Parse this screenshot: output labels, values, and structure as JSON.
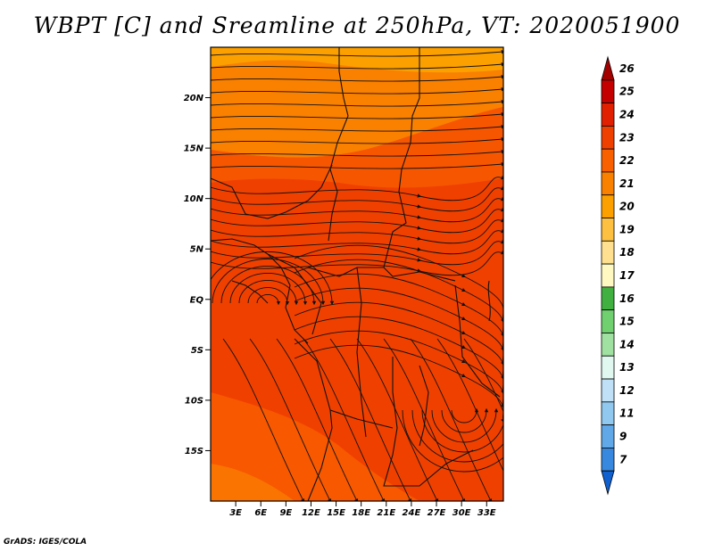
{
  "title": "WBPT [C] and Sreamline at 250hPa, VT: 2020051900",
  "credit": "GrADS: IGES/COLA",
  "chart_data": {
    "type": "heatmap",
    "variable": "WBPT [C]",
    "overlay": "streamlines at 250hPa",
    "valid_time": "2020051900",
    "y_ticks": [
      "20N",
      "15N",
      "10N",
      "5N",
      "EQ",
      "5S",
      "10S",
      "15S"
    ],
    "y_tick_values": [
      20,
      15,
      10,
      5,
      0,
      -5,
      -10,
      -15
    ],
    "x_ticks": [
      "3E",
      "6E",
      "9E",
      "12E",
      "15E",
      "18E",
      "21E",
      "24E",
      "27E",
      "30E",
      "33E"
    ],
    "x_tick_values": [
      3,
      6,
      9,
      12,
      15,
      18,
      21,
      24,
      27,
      30,
      33
    ],
    "lon_range": [
      0,
      35
    ],
    "lat_range": [
      -20,
      25
    ],
    "colorbar": {
      "labels": [
        "26",
        "25",
        "24",
        "23",
        "22",
        "21",
        "20",
        "19",
        "18",
        "17",
        "16",
        "15",
        "14",
        "13",
        "12",
        "11",
        "9",
        "7"
      ],
      "colors": [
        "#a50000",
        "#c40000",
        "#e02000",
        "#f04000",
        "#f86000",
        "#fa8000",
        "#fca000",
        "#fdc040",
        "#fee090",
        "#fff8c0",
        "#40b040",
        "#70d070",
        "#a0e0a0",
        "#e0f8f0",
        "#c0e0f8",
        "#90c8f0",
        "#60a8e8",
        "#3888e0",
        "#1060d0"
      ]
    },
    "field_colors": {
      "dominant": "#f04000",
      "warm": "#fa6000",
      "north": "#fa8000",
      "northmost": "#fca000"
    }
  }
}
